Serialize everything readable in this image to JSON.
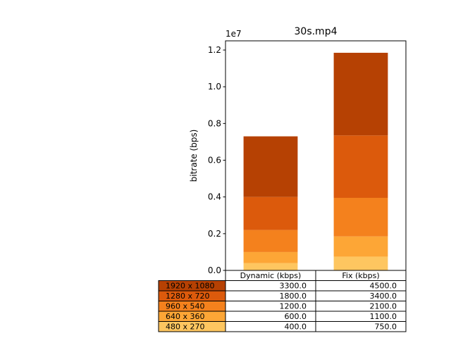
{
  "chart_data": {
    "type": "bar",
    "stacked": true,
    "title": "30s.mp4",
    "ylabel": "bitrate (bps)",
    "y_offset_text": "1e7",
    "ylim": [
      0,
      12500000
    ],
    "yticks": [
      0,
      2000000,
      4000000,
      6000000,
      8000000,
      10000000,
      12000000
    ],
    "ytick_labels": [
      "0.0",
      "0.2",
      "0.4",
      "0.6",
      "0.8",
      "1.0",
      "1.2"
    ],
    "categories": [
      "Dynamic (kbps)",
      "Fix (kbps)"
    ],
    "series": [
      {
        "name": "480 x 270",
        "color": "#fec660",
        "values": [
          400.0,
          750.0
        ]
      },
      {
        "name": "640 x 360",
        "color": "#fda636",
        "values": [
          600.0,
          1100.0
        ]
      },
      {
        "name": "960 x 540",
        "color": "#f4811d",
        "values": [
          1200.0,
          2100.0
        ]
      },
      {
        "name": "1280 x 720",
        "color": "#dc5a0c",
        "values": [
          1800.0,
          3400.0
        ]
      },
      {
        "name": "1920 x 1080",
        "color": "#b64103",
        "values": [
          3300.0,
          4500.0
        ]
      }
    ],
    "table": {
      "columns": [
        "Dynamic (kbps)",
        "Fix (kbps)"
      ],
      "rows": [
        {
          "label": "1920 x 1080",
          "color": "#b64103",
          "cells": [
            "3300.0",
            "4500.0"
          ]
        },
        {
          "label": "1280 x 720",
          "color": "#dc5a0c",
          "cells": [
            "1800.0",
            "3400.0"
          ]
        },
        {
          "label": "960 x 540",
          "color": "#f4811d",
          "cells": [
            "1200.0",
            "2100.0"
          ]
        },
        {
          "label": "640 x 360",
          "color": "#fda636",
          "cells": [
            "600.0",
            "1100.0"
          ]
        },
        {
          "label": "480 x 270",
          "color": "#fec660",
          "cells": [
            "400.0",
            "750.0"
          ]
        }
      ]
    }
  }
}
